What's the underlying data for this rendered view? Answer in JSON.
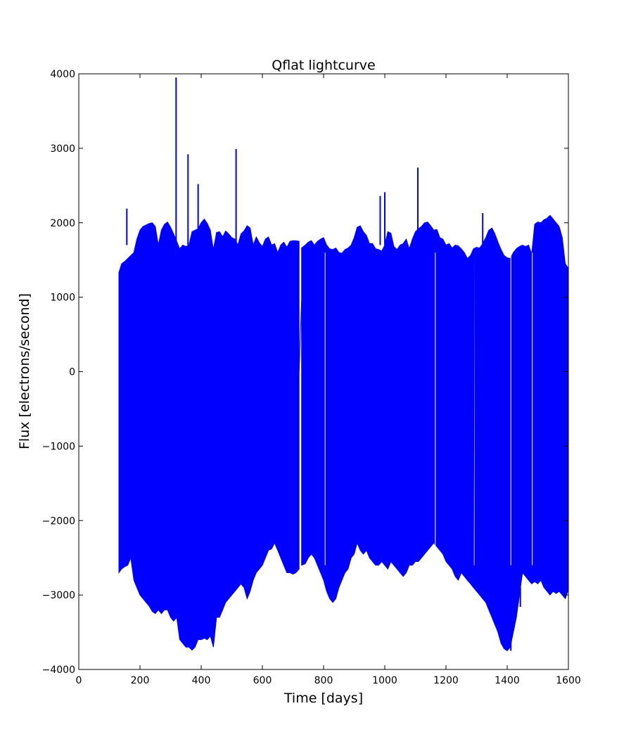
{
  "chart_data": {
    "type": "area",
    "title": "Qflat lightcurve",
    "xlabel": "Time [days]",
    "ylabel": "Flux [electrons/second]",
    "xlim": [
      0,
      1600
    ],
    "ylim": [
      -4000,
      4000
    ],
    "x_ticks": [
      {
        "value": 0,
        "label": "0"
      },
      {
        "value": 200,
        "label": "200"
      },
      {
        "value": 400,
        "label": "400"
      },
      {
        "value": 600,
        "label": "600"
      },
      {
        "value": 800,
        "label": "800"
      },
      {
        "value": 1000,
        "label": "1000"
      },
      {
        "value": 1200,
        "label": "1200"
      },
      {
        "value": 1400,
        "label": "1400"
      },
      {
        "value": 1600,
        "label": "1600"
      }
    ],
    "y_ticks": [
      {
        "value": -4000,
        "label": "−4000"
      },
      {
        "value": -3000,
        "label": "−3000"
      },
      {
        "value": -2000,
        "label": "−2000"
      },
      {
        "value": -1000,
        "label": "−1000"
      },
      {
        "value": 0,
        "label": "0"
      },
      {
        "value": 1000,
        "label": "1000"
      },
      {
        "value": 2000,
        "label": "2000"
      },
      {
        "value": 3000,
        "label": "3000"
      },
      {
        "value": 4000,
        "label": "4000"
      }
    ],
    "grid": false,
    "line_color": "#0000ff",
    "segments": [
      {
        "x": [
          131,
          140,
          150,
          160,
          170,
          180,
          190,
          200,
          210,
          220,
          230,
          240,
          250,
          260,
          270,
          280,
          290,
          300,
          310,
          320,
          330,
          340,
          350,
          360,
          370,
          380,
          390,
          400,
          410,
          420,
          430,
          440,
          450,
          460,
          470,
          480,
          490,
          500,
          510,
          520,
          530,
          540,
          550,
          560,
          570,
          580,
          590,
          600,
          610,
          620,
          630,
          640,
          650,
          660,
          670,
          680,
          690,
          700,
          710,
          720
        ],
        "upper": [
          1330,
          1450,
          1480,
          1520,
          1560,
          1600,
          1780,
          1900,
          1950,
          1970,
          1990,
          2000,
          1950,
          1700,
          1900,
          1980,
          2010,
          1940,
          1850,
          1750,
          1650,
          1700,
          1680,
          1700,
          1880,
          1900,
          1920,
          2000,
          2050,
          1990,
          1900,
          1640,
          1870,
          1880,
          1810,
          1890,
          1850,
          1800,
          1780,
          1700,
          1850,
          1890,
          1960,
          1930,
          1700,
          1810,
          1730,
          1680,
          1780,
          1810,
          1700,
          1720,
          1600,
          1700,
          1740,
          1670,
          1750,
          1760,
          1760,
          1750
        ],
        "lower": [
          -2700,
          -2650,
          -2620,
          -2600,
          -2500,
          -2800,
          -2900,
          -3000,
          -3050,
          -3100,
          -3150,
          -3220,
          -3250,
          -3200,
          -3250,
          -3200,
          -3200,
          -3300,
          -3350,
          -3300,
          -3600,
          -3650,
          -3700,
          -3700,
          -3740,
          -3700,
          -3600,
          -3600,
          -3580,
          -3600,
          -3550,
          -3700,
          -3300,
          -3300,
          -3200,
          -3100,
          -3050,
          -3000,
          -2950,
          -2900,
          -2850,
          -2900,
          -3050,
          -2950,
          -2800,
          -2700,
          -2650,
          -2600,
          -2500,
          -2400,
          -2380,
          -2300,
          -2400,
          -2500,
          -2600,
          -2700,
          -2700,
          -2720,
          -2700,
          -2650
        ]
      },
      {
        "x": [
          728,
          740,
          750,
          760,
          770,
          780,
          790,
          800,
          810,
          820,
          830,
          840,
          850,
          860,
          870,
          880,
          890,
          900,
          910,
          920,
          930,
          940,
          950,
          960,
          970,
          980,
          990,
          1000,
          1010,
          1020,
          1030,
          1040,
          1050,
          1060,
          1070,
          1080,
          1090,
          1100,
          1110,
          1120,
          1130,
          1140,
          1150,
          1160,
          1170,
          1180,
          1190,
          1200,
          1210,
          1220,
          1230,
          1240,
          1250,
          1260,
          1270,
          1280,
          1290,
          1300,
          1310,
          1320,
          1330,
          1340,
          1350,
          1360,
          1370,
          1380,
          1390,
          1400,
          1410,
          1420,
          1430,
          1440,
          1450,
          1460,
          1470,
          1480,
          1490,
          1500,
          1510,
          1520,
          1530,
          1540,
          1550,
          1560,
          1570,
          1580,
          1590,
          1598
        ],
        "upper": [
          1660,
          1700,
          1740,
          1760,
          1700,
          1750,
          1780,
          1800,
          1700,
          1650,
          1640,
          1660,
          1600,
          1590,
          1640,
          1660,
          1700,
          1800,
          1940,
          1960,
          1880,
          1830,
          1720,
          1720,
          1650,
          1640,
          1620,
          1700,
          1880,
          1860,
          1680,
          1640,
          1700,
          1720,
          1780,
          1650,
          1780,
          1880,
          1920,
          1950,
          2000,
          2010,
          1960,
          1900,
          1910,
          1800,
          1780,
          1700,
          1720,
          1660,
          1700,
          1690,
          1650,
          1600,
          1520,
          1560,
          1650,
          1670,
          1660,
          1720,
          1800,
          1900,
          1930,
          1850,
          1740,
          1640,
          1560,
          1530,
          1520,
          1600,
          1650,
          1680,
          1700,
          1680,
          1700,
          1580,
          1980,
          2010,
          2000,
          2040,
          2060,
          2100,
          2050,
          2000,
          1950,
          1800,
          1450,
          1400
        ],
        "lower": [
          -2600,
          -2580,
          -2500,
          -2450,
          -2500,
          -2600,
          -2700,
          -2800,
          -2950,
          -3050,
          -3100,
          -3050,
          -2900,
          -2800,
          -2700,
          -2650,
          -2500,
          -2450,
          -2300,
          -2400,
          -2450,
          -2400,
          -2500,
          -2550,
          -2600,
          -2600,
          -2550,
          -2600,
          -2650,
          -2550,
          -2600,
          -2650,
          -2700,
          -2750,
          -2700,
          -2600,
          -2600,
          -2550,
          -2550,
          -2500,
          -2450,
          -2400,
          -2350,
          -2300,
          -2350,
          -2400,
          -2450,
          -2550,
          -2600,
          -2650,
          -2750,
          -2800,
          -2700,
          -2750,
          -2800,
          -2850,
          -2900,
          -2950,
          -3000,
          -3050,
          -3100,
          -3200,
          -3300,
          -3400,
          -3500,
          -3650,
          -3720,
          -3750,
          -3700,
          -3500,
          -3300,
          -3000,
          -2700,
          -2750,
          -2800,
          -2850,
          -2820,
          -2850,
          -2800,
          -2900,
          -2950,
          -3000,
          -2950,
          -2980,
          -2950,
          -3000,
          -3050,
          -2950
        ]
      }
    ],
    "gap_lines": [
      {
        "x": [
          720,
          728
        ],
        "y": [
          0,
          950
        ]
      },
      {
        "x": [
          1290,
          1292
        ],
        "y": [
          -2800,
          1600
        ]
      }
    ],
    "spikes": [
      {
        "x": 140,
        "y": 1700
      },
      {
        "x": 157,
        "y": 2190
      },
      {
        "x": 318,
        "y": 3950
      },
      {
        "x": 357,
        "y": 2920
      },
      {
        "x": 390,
        "y": 2520
      },
      {
        "x": 514,
        "y": 2990
      },
      {
        "x": 985,
        "y": 2360
      },
      {
        "x": 1000,
        "y": 2410
      },
      {
        "x": 1108,
        "y": 2740
      },
      {
        "x": 1320,
        "y": 2130
      },
      {
        "x": 1412,
        "y": -3750
      },
      {
        "x": 1443,
        "y": -3160
      }
    ]
  }
}
